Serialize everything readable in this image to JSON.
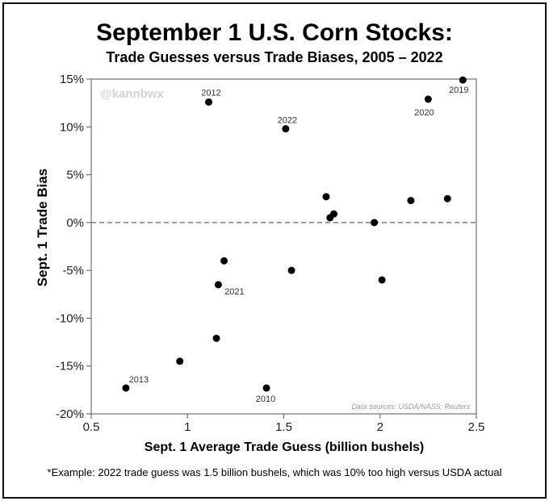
{
  "header": {
    "title": "September 1 U.S. Corn Stocks:",
    "subtitle": "Trade Guesses versus Trade Biases, 2005 – 2022"
  },
  "footnote": "*Example: 2022 trade guess was 1.5 billion bushels, which was 10% too high versus USDA actual",
  "chart_data": {
    "type": "scatter",
    "title": "September 1 U.S. Corn Stocks:",
    "subtitle": "Trade Guesses versus Trade Biases, 2005 – 2022",
    "xlabel": "Sept. 1 Average Trade Guess (billion bushels)",
    "ylabel": "Sept. 1 Trade Bias",
    "xlim": [
      0.5,
      2.5
    ],
    "ylim": [
      -20,
      15
    ],
    "xticks": [
      0.5,
      1,
      1.5,
      2,
      2.5
    ],
    "xtick_labels": [
      "0.5",
      "1",
      "1.5",
      "2",
      "2.5"
    ],
    "yticks": [
      15,
      10,
      5,
      0,
      -5,
      -10,
      -15,
      -20
    ],
    "ytick_labels": [
      "15%",
      "10%",
      "5%",
      "0%",
      "-5%",
      "-10%",
      "-15%",
      "-20%"
    ],
    "grid": false,
    "reference_line": {
      "y": 0,
      "style": "dashed"
    },
    "watermark": "@kannbwx",
    "source_note": "Data sources: USDA/NASS; Reuters",
    "marker_color": "#000000",
    "points": [
      {
        "x": 0.68,
        "y": -17.3,
        "label": "2013"
      },
      {
        "x": 0.96,
        "y": -14.5,
        "label": ""
      },
      {
        "x": 1.11,
        "y": 12.6,
        "label": "2012"
      },
      {
        "x": 1.15,
        "y": -12.1,
        "label": ""
      },
      {
        "x": 1.16,
        "y": -6.5,
        "label": "2021"
      },
      {
        "x": 1.19,
        "y": -4.0,
        "label": ""
      },
      {
        "x": 1.41,
        "y": -17.3,
        "label": "2010"
      },
      {
        "x": 1.51,
        "y": 9.8,
        "label": "2022"
      },
      {
        "x": 1.54,
        "y": -5.0,
        "label": ""
      },
      {
        "x": 1.72,
        "y": 2.7,
        "label": ""
      },
      {
        "x": 1.74,
        "y": 0.5,
        "label": ""
      },
      {
        "x": 1.76,
        "y": 0.9,
        "label": ""
      },
      {
        "x": 1.97,
        "y": 0.0,
        "label": ""
      },
      {
        "x": 2.01,
        "y": -6.0,
        "label": ""
      },
      {
        "x": 2.16,
        "y": 2.3,
        "label": ""
      },
      {
        "x": 2.25,
        "y": 12.9,
        "label": "2020"
      },
      {
        "x": 2.35,
        "y": 2.5,
        "label": ""
      },
      {
        "x": 2.43,
        "y": 14.9,
        "label": "2019"
      }
    ]
  }
}
